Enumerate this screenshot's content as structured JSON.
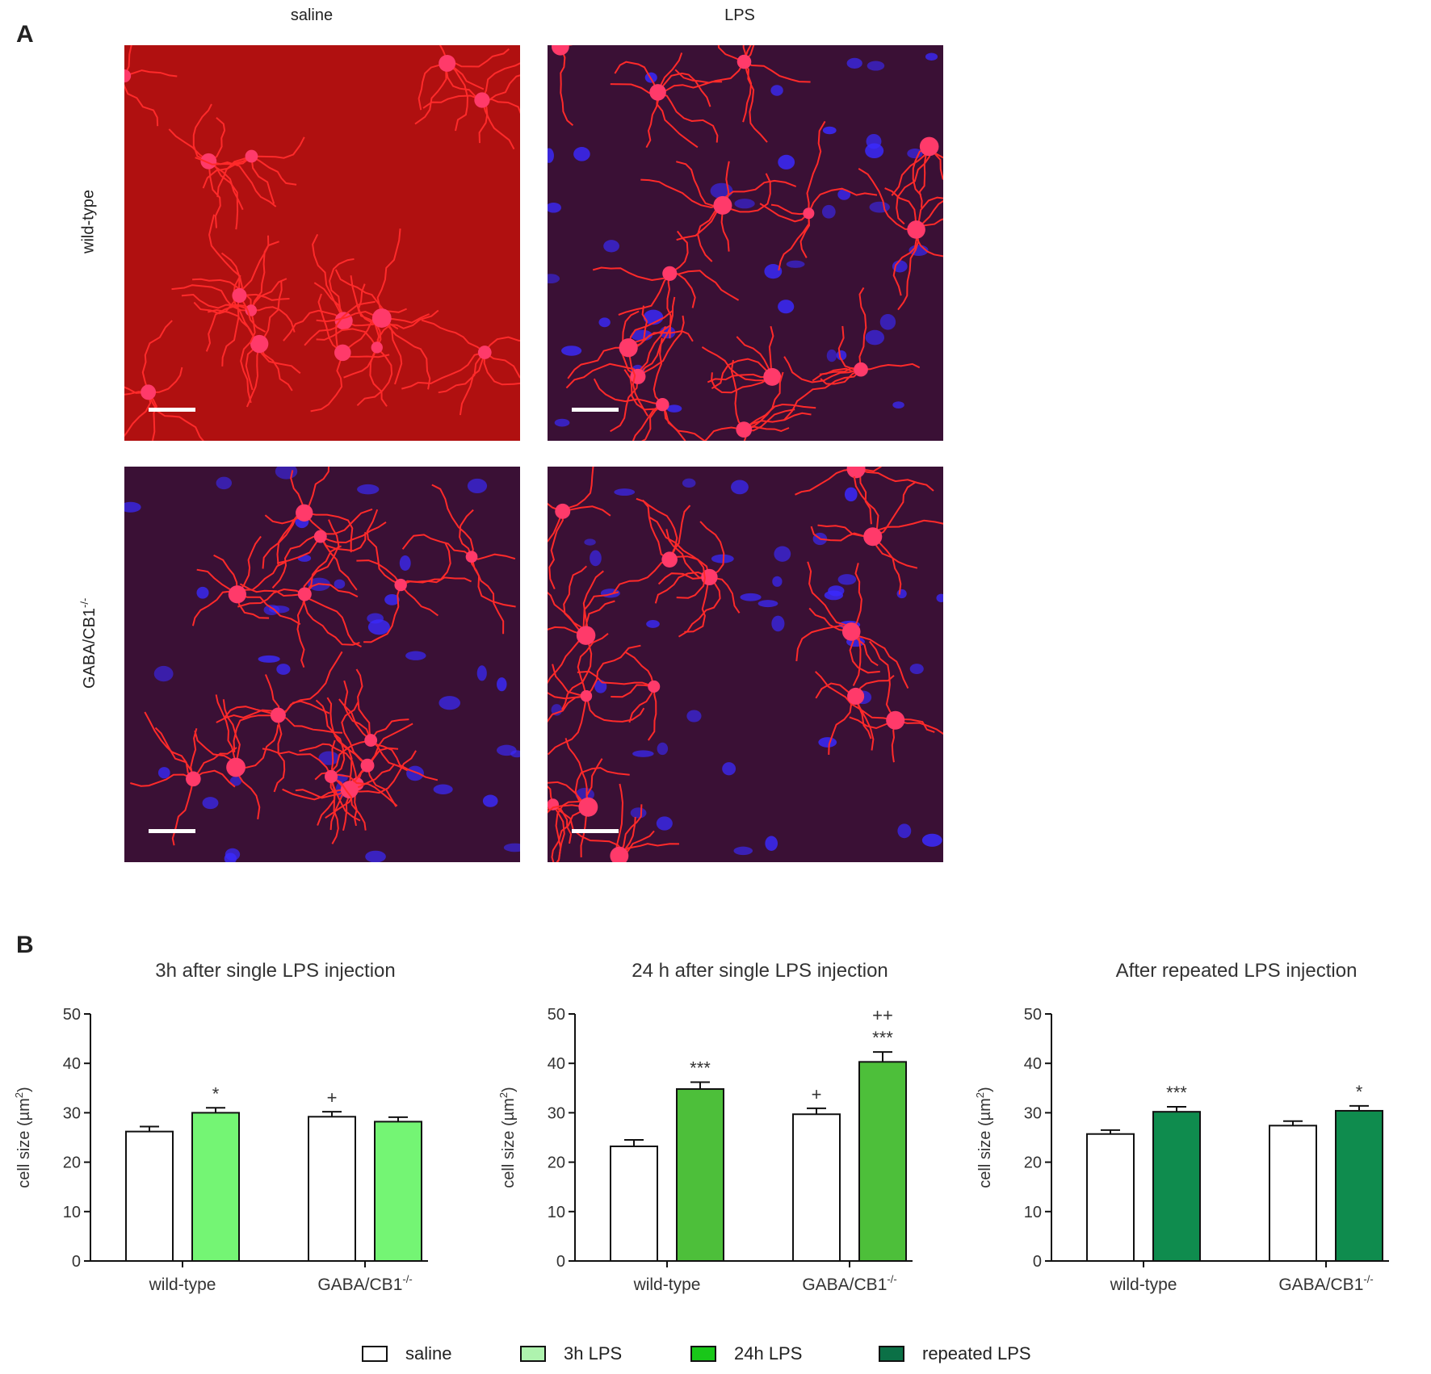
{
  "panel_a": {
    "letter": "A",
    "columns": [
      "saline",
      "LPS"
    ],
    "rows": [
      "wild-type",
      "GABA/CB1"
    ],
    "row_superscript": "-/-",
    "images": [
      {
        "name": "micrograph-wildtype-saline",
        "background": "#b01010",
        "nuclei": false
      },
      {
        "name": "micrograph-wildtype-lps",
        "background": "#3a1035",
        "nuclei": true
      },
      {
        "name": "micrograph-gabacb1-saline",
        "background": "#3a1035",
        "nuclei": true
      },
      {
        "name": "micrograph-gabacb1-lps",
        "background": "#3a1035",
        "nuclei": true
      }
    ],
    "colors": {
      "process": "#ff2a2a",
      "nucleus": "#3a2aff",
      "soma": "#ff3a6a"
    }
  },
  "panel_b": {
    "letter": "B",
    "ylabel": "cell size (µm²)",
    "ylabel_text": "cell size (",
    "ylabel_unit": "µm",
    "ylabel_sup": "2",
    "ylabel_close": ")",
    "yticks": [
      "0",
      "10",
      "20",
      "30",
      "40",
      "50"
    ],
    "categories": [
      "wild-type",
      "GABA/CB1"
    ],
    "category_superscript": "-/-"
  },
  "chart_data": [
    {
      "type": "bar",
      "title": "3h after single LPS injection",
      "categories": [
        "wild-type",
        "GABA/CB1-/-"
      ],
      "ylim": [
        0,
        50
      ],
      "series": [
        {
          "name": "saline",
          "color": "#ffffff",
          "values": [
            26.2,
            29.2
          ],
          "errors": [
            1.0,
            1.0
          ],
          "annotations": [
            "",
            "+"
          ]
        },
        {
          "name": "3h LPS",
          "color": "#74f574",
          "values": [
            30.0,
            28.2
          ],
          "errors": [
            1.0,
            0.9
          ],
          "annotations": [
            "*",
            ""
          ]
        }
      ]
    },
    {
      "type": "bar",
      "title": "24 h after single LPS injection",
      "categories": [
        "wild-type",
        "GABA/CB1-/-"
      ],
      "ylim": [
        0,
        50
      ],
      "series": [
        {
          "name": "saline",
          "color": "#ffffff",
          "values": [
            23.2,
            29.7
          ],
          "errors": [
            1.3,
            1.2
          ],
          "annotations": [
            "",
            "+"
          ]
        },
        {
          "name": "24h LPS",
          "color": "#4dbf3a",
          "values": [
            34.8,
            40.3
          ],
          "errors": [
            1.4,
            2.0
          ],
          "annotations": [
            "***",
            "***"
          ],
          "annotations2": [
            "",
            "++"
          ]
        }
      ]
    },
    {
      "type": "bar",
      "title": "After repeated LPS injection",
      "categories": [
        "wild-type",
        "GABA/CB1-/-"
      ],
      "ylim": [
        0,
        50
      ],
      "series": [
        {
          "name": "saline",
          "color": "#ffffff",
          "values": [
            25.7,
            27.4
          ],
          "errors": [
            0.8,
            0.9
          ],
          "annotations": [
            "",
            ""
          ]
        },
        {
          "name": "repeated LPS",
          "color": "#0f8c4e",
          "values": [
            30.2,
            30.4
          ],
          "errors": [
            1.0,
            1.0
          ],
          "annotations": [
            "***",
            "*"
          ]
        }
      ]
    }
  ],
  "legend": [
    {
      "label": "saline",
      "color": "#ffffff"
    },
    {
      "label": "3h LPS",
      "color": "#aef3ae"
    },
    {
      "label": "24h LPS",
      "color": "#19c719"
    },
    {
      "label": "repeated LPS",
      "color": "#0b7046"
    }
  ]
}
